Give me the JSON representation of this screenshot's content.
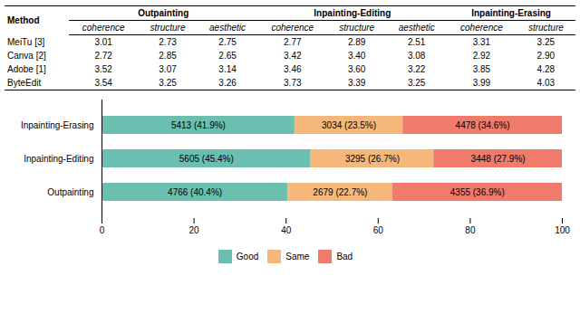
{
  "chart_data": [
    {
      "type": "table",
      "row_header": "Method",
      "column_groups": [
        {
          "name": "Outpainting",
          "columns": [
            "coherence",
            "structure",
            "aesthetic"
          ]
        },
        {
          "name": "Inpainting-Editing",
          "columns": [
            "coherence",
            "structure",
            "aesthetic"
          ]
        },
        {
          "name": "Inpainting-Erasing",
          "columns": [
            "coherence",
            "structure"
          ]
        }
      ],
      "rows": [
        {
          "name": "MeiTu [3]",
          "values": [
            3.01,
            2.73,
            2.75,
            2.77,
            2.89,
            2.51,
            3.31,
            3.25
          ],
          "value_labels": [
            "3.01",
            "2.73",
            "2.75",
            "2.77",
            "2.89",
            "2.51",
            "3.31",
            "3.25"
          ]
        },
        {
          "name": "Canva [2]",
          "values": [
            2.72,
            2.85,
            2.65,
            3.42,
            3.4,
            3.08,
            2.92,
            2.9
          ],
          "value_labels": [
            "2.72",
            "2.85",
            "2.65",
            "3.42",
            "3.40",
            "3.08",
            "2.92",
            "2.90"
          ]
        },
        {
          "name": "Adobe [1]",
          "values": [
            3.52,
            3.07,
            3.14,
            3.46,
            3.6,
            3.22,
            3.85,
            4.28
          ],
          "value_labels": [
            "3.52",
            "3.07",
            "3.14",
            "3.46",
            "3.60",
            "3.22",
            "3.85",
            "4.28"
          ]
        },
        {
          "name": "ByteEdit",
          "values": [
            3.54,
            3.25,
            3.26,
            3.73,
            3.39,
            3.25,
            3.99,
            4.03
          ],
          "value_labels": [
            "3.54",
            "3.25",
            "3.26",
            "3.73",
            "3.39",
            "3.25",
            "3.99",
            "4.03"
          ]
        }
      ]
    },
    {
      "type": "bar",
      "orientation": "horizontal",
      "stacked": true,
      "data_labels": true,
      "legend": "bottom",
      "grid": false,
      "categories": [
        "Outpainting",
        "Inpainting-Editing",
        "Inpainting-Erasing"
      ],
      "series": [
        {
          "name": "Good",
          "color": "#6abfb0",
          "values": [
            40.4,
            45.4,
            41.9
          ],
          "value_labels": [
            "4766 (40.4%)",
            "5605 (45.4%)",
            "5413 (41.9%)"
          ]
        },
        {
          "name": "Same",
          "color": "#f5b87a",
          "values": [
            22.7,
            26.7,
            23.5
          ],
          "value_labels": [
            "2679 (22.7%)",
            "3295 (26.7%)",
            "3034 (23.5%)"
          ]
        },
        {
          "name": "Bad",
          "color": "#f07b6b",
          "values": [
            36.9,
            27.9,
            34.6
          ],
          "value_labels": [
            "4355 (36.9%)",
            "3448 (27.9%)",
            "4478 (34.6%)"
          ]
        }
      ],
      "xlim": [
        0,
        100
      ],
      "xticks": [
        0,
        20,
        40,
        60,
        80,
        100
      ]
    }
  ]
}
